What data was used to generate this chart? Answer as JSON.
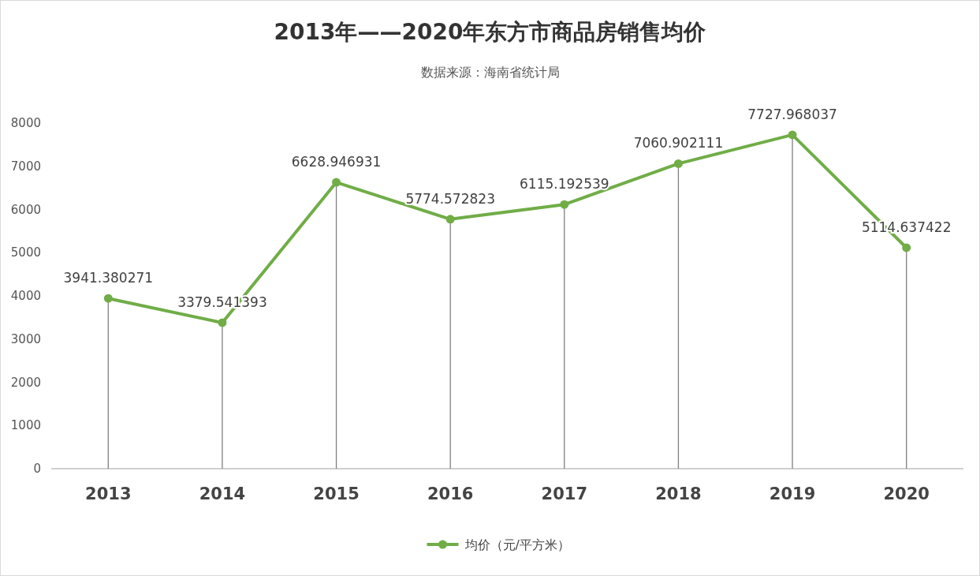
{
  "chart_data": {
    "type": "line",
    "title": "2013年——2020年东方市商品房销售均价",
    "subtitle": "数据来源：海南省统计局",
    "categories": [
      "2013",
      "2014",
      "2015",
      "2016",
      "2017",
      "2018",
      "2019",
      "2020"
    ],
    "series": [
      {
        "name": "均价（元/平方米）",
        "color": "#70ad47",
        "values": [
          3941.380271,
          3379.541393,
          6628.946931,
          5774.572823,
          6115.192539,
          7060.902111,
          7727.968037,
          5114.637422
        ]
      }
    ],
    "ylim": [
      0,
      8000
    ],
    "yticks": [
      0,
      1000,
      2000,
      3000,
      4000,
      5000,
      6000,
      7000,
      8000
    ],
    "grid": "x",
    "legend": "bottom",
    "marker": "circle",
    "line_style": "solid",
    "data_labels": true
  }
}
